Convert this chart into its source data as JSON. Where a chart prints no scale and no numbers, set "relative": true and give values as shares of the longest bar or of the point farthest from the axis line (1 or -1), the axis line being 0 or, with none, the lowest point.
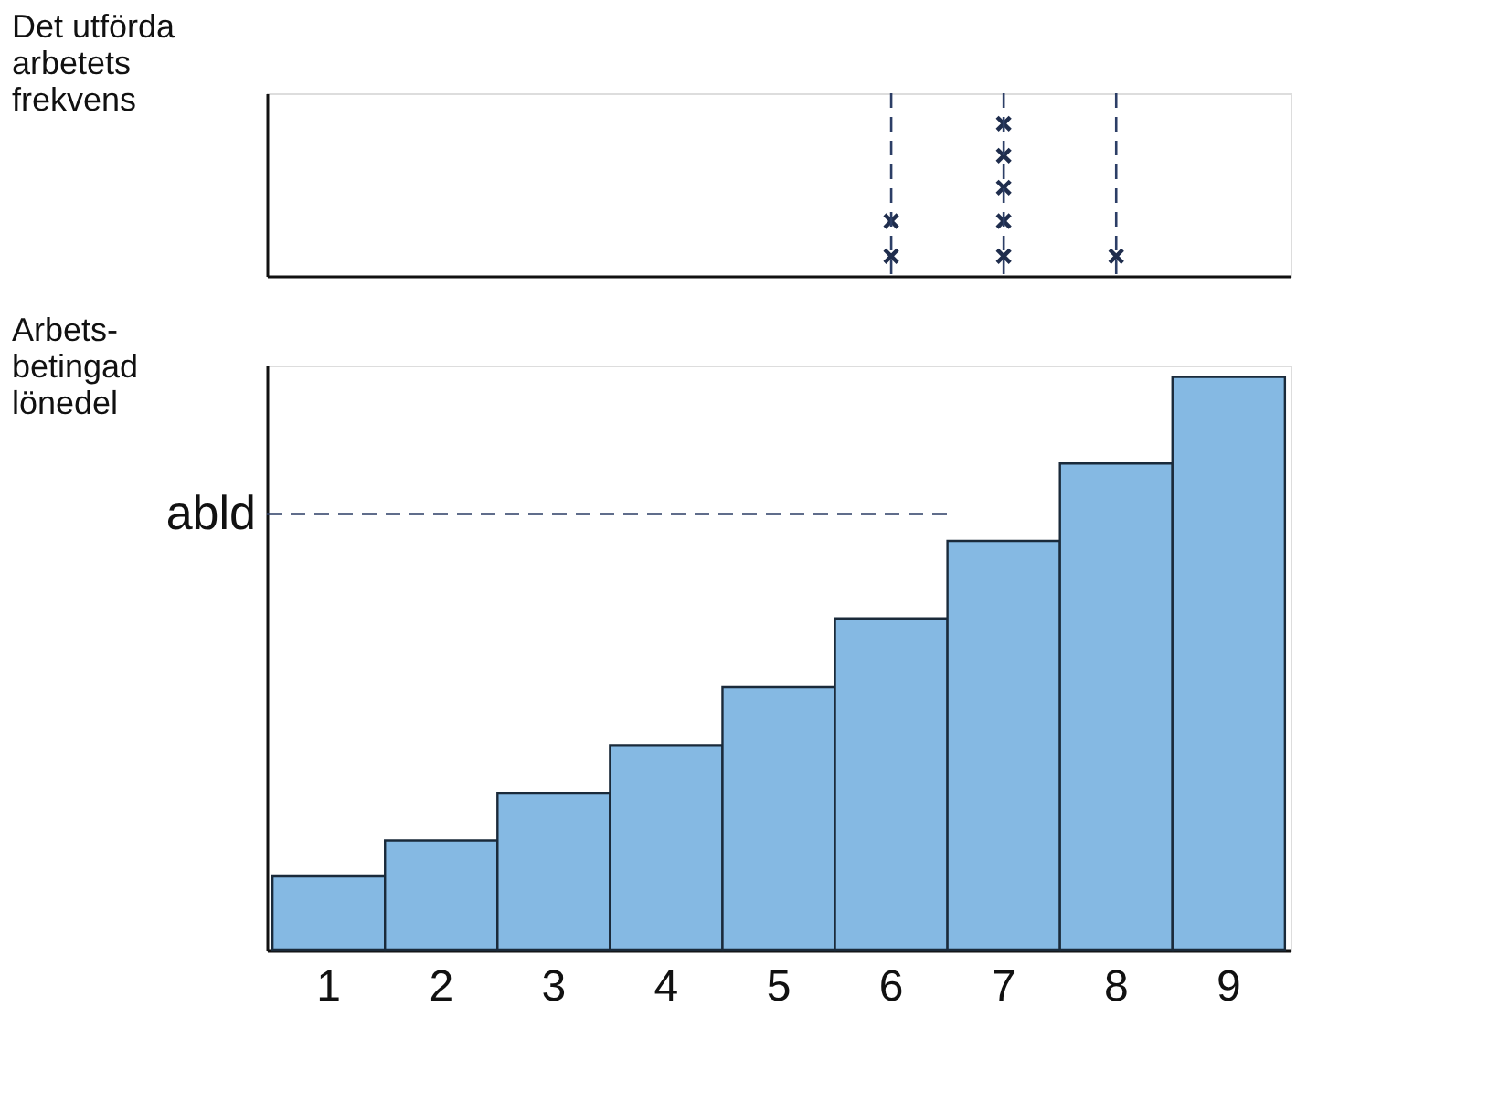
{
  "chart_data": [
    {
      "type": "scatter",
      "ylabel": "Det utförda\narbetets\nfrekvens",
      "categories": [
        "1",
        "2",
        "3",
        "4",
        "5",
        "6",
        "7",
        "8",
        "9"
      ],
      "relative": true,
      "tick_labels": false,
      "marker": "cross",
      "grid": false,
      "series": [
        {
          "color": "#1f2d4d",
          "x": [
            "6",
            "6",
            "7",
            "7",
            "7",
            "7",
            "7",
            "8"
          ],
          "values": [
            0.13,
            0.36,
            0.13,
            0.36,
            0.58,
            0.79,
            1,
            0.13
          ]
        }
      ],
      "ref_lines": [
        {
          "axis": "x",
          "value": "6",
          "color": "#2c3e66",
          "line_style": "dashed"
        },
        {
          "axis": "x",
          "value": "7",
          "color": "#2c3e66",
          "line_style": "dashed"
        },
        {
          "axis": "x",
          "value": "8",
          "color": "#2c3e66",
          "line_style": "dashed"
        }
      ]
    },
    {
      "type": "bar",
      "ylabel": "Arbets-\nbetingad\nlönedel",
      "categories": [
        "1",
        "2",
        "3",
        "4",
        "5",
        "6",
        "7",
        "8",
        "9"
      ],
      "relative": true,
      "tick_labels": "x",
      "grid": false,
      "series": [
        {
          "color": "#85b9e3",
          "values": [
            0.129,
            0.192,
            0.274,
            0.358,
            0.459,
            0.579,
            0.714,
            0.849,
            1
          ]
        }
      ],
      "ref_lines": [
        {
          "axis": "y",
          "value": 0.761,
          "label": "abld",
          "color": "#2c3e66",
          "line_style": "dashed"
        }
      ]
    }
  ]
}
